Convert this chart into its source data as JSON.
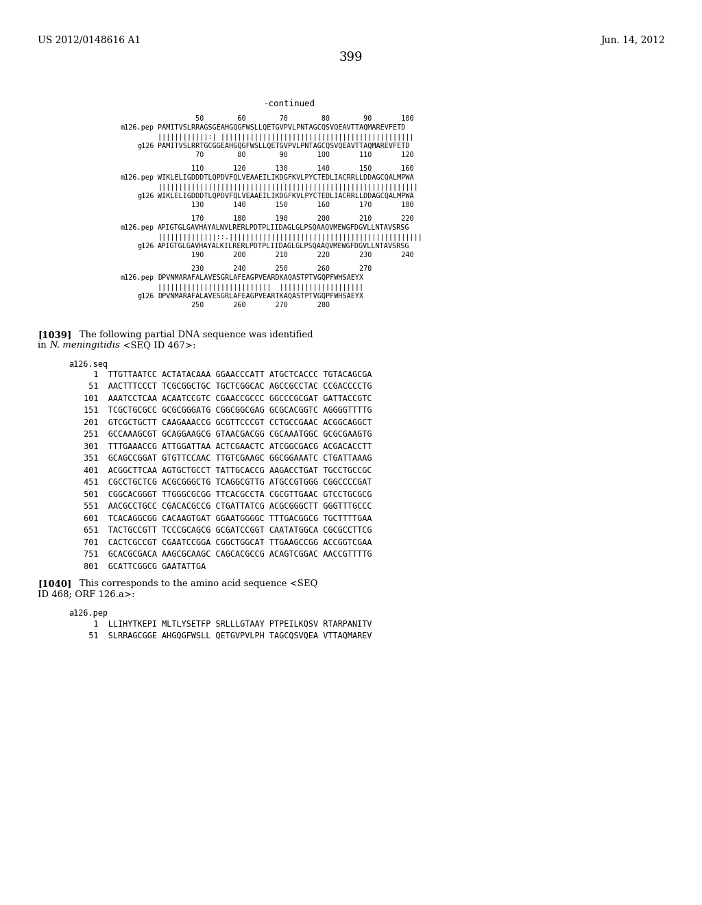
{
  "header_left": "US 2012/0148616 A1",
  "header_right": "Jun. 14, 2012",
  "page_number": "399",
  "background_color": "#ffffff",
  "sections": [
    {
      "nums_top": "         50        60        70        80        90       100",
      "label1": "m126.pep",
      "seq1": "PAMITVSLRRAGSGEAHGQGFWSLLQETGVPVLPNTAGCQSVQEAVTTAQMAREVFETD",
      "match": "||||||||||||:| ||||||||||||||||||||||||||||||||||||||||||||||",
      "label2": "g126",
      "seq2": "PAMITVSLRRTGCGGEAHGQGFWSLLQETGVPVLPNTAGCQSVQEAVTTAQMAREVFETD",
      "nums_bot": "         70        80        90       100       110       120"
    },
    {
      "nums_top": "        110       120       130       140       150       160",
      "label1": "m126.pep",
      "seq1": "WIKLELIGDDDTLQPDVFQLVEAAEILIKDGFKVLPYCTEDLIACRRLLDDAGCQALMPWA",
      "match": "||||||||||||||||||||||||||||||||||||||||||||||||||||||||||||||",
      "label2": "g126",
      "seq2": "WIKLELIGDDDTLQPDVFQLVEAAEILIKDGFKVLPYCTEDLIACRRLLDDAGCQALMPWA",
      "nums_bot": "        130       140       150       160       170       180"
    },
    {
      "nums_top": "        170       180       190       200       210       220",
      "label1": "m126.pep",
      "seq1": "APIGTGLGAVHAYALNVLRERLPDTPLIIDAGLGLPSQAAQVMEWGFDGVLLNTAVSRSG",
      "match": "||||||||||||||::.||||||||||||||||||||||||||||||||||||||||||||||",
      "label2": "g126",
      "seq2": "APIGTGLGAVHAYALKILRERLPDTPLIIDAGLGLPSQAAQVMEWGFDGVLLNTAVSRSG",
      "nums_bot": "        190       200       210       220       230       240"
    },
    {
      "nums_top": "        230       240       250       260       270",
      "label1": "m126.pep",
      "seq1": "DPVNMARAFALAVESGRLAFEAGPVEARDKAQASTPTVGQPFWHSAEYX",
      "match": "|||||||||||||||||||||||||||  ||||||||||||||||||||",
      "label2": "g126",
      "seq2": "DPVNMARAFALAVESGRLAFEAGPVEARTKAQASTPTVGQPFWHSAEYX",
      "nums_bot": "        250       260       270       280"
    }
  ],
  "para1039_bold": "[1039]",
  "para1039_rest": "   The following partial DNA sequence was identified",
  "para1039_line2_italic": "in ",
  "para1039_line2_italic_text": "N. meningitidis",
  "para1039_line2_rest": " <SEQ ID 467>:",
  "dna_label": "a126.seq",
  "dna_lines": [
    "   1  TTGTTAATCC ACTATACAAA GGAACCCATT ATGCTCACCC TGTACAGCGA",
    "  51  AACTTTCCCT TCGCGGCTGC TGCTCGGCAC AGCCGCCTAC CCGACCCCTG",
    " 101  AAATCCTCAA ACAATCCGTC CGAACCGCCC GGCCCGCGAT GATTACCGTC",
    " 151  TCGCTGCGCC GCGCGGGATG CGGCGGCGAG GCGCACGGTC AGGGGTTTTG",
    " 201  GTCGCTGCTT CAAGAAACCG GCGTTCCCGT CCTGCCGAAC ACGGCAGGCT",
    " 251  GCCAAAGCGT GCAGGAAGCG GTAACGACGG CGCAAATGGC GCGCGAAGTG",
    " 301  TTTGAAACCG ATTGGATTAA ACTCGAACTC ATCGGCGACG ACGACACCTT",
    " 351  GCAGCCGGAT GTGTTCCAAC TTGTCGAAGC GGCGGAAATC CTGATTAAAG",
    " 401  ACGGCTTCAA AGTGCTGCCT TATTGCACCG AAGACCTGAT TGCCTGCCGC",
    " 451  CGCCTGCTCG ACGCGGGCTG TCAGGCGTTG ATGCCGTGGG CGGCCCCGAT",
    " 501  CGGCACGGGT TTGGGCGCGG TTCACGCCTA CGCGTTGAAC GTCCTGCGCG",
    " 551  AACGCCTGCC CGACACGCCG CTGATTATCG ACGCGGGCTT GGGTTTGCCC",
    " 601  TCACAGGCGG CACAAGTGAT GGAATGGGGC TTTGACGGCG TGCTTTTGAA",
    " 651  TACTGCCGTT TCCCGCAGCG GCGATCCGGT CAATATGGCA CGCGCCTTCG",
    " 701  CACTCGCCGT CGAATCCGGA CGGCTGGCAT TTGAAGCCGG ACCGGTCGAA",
    " 751  GCACGCGACA AAGCGCAAGC CAGCACGCCG ACAGTCGGAC AACCGTTTTG",
    " 801  GCATTCGGCG GAATATTGA"
  ],
  "para1040_bold": "[1040]",
  "para1040_rest": "   This corresponds to the amino acid sequence <SEQ",
  "para1040_line2": "ID 468; ORF 126.a>:",
  "pep_label": "a126.pep",
  "pep_lines": [
    "   1  LLIHYTKEPI MLTLYSETFP SRLLLGTAAY PTPEILKQSV RTARPANITV",
    "  51  SLRRAGCGGE AHGQGFWSLL QETGVPVLPH TAGCQSVQEA VTTAQMAREV"
  ]
}
